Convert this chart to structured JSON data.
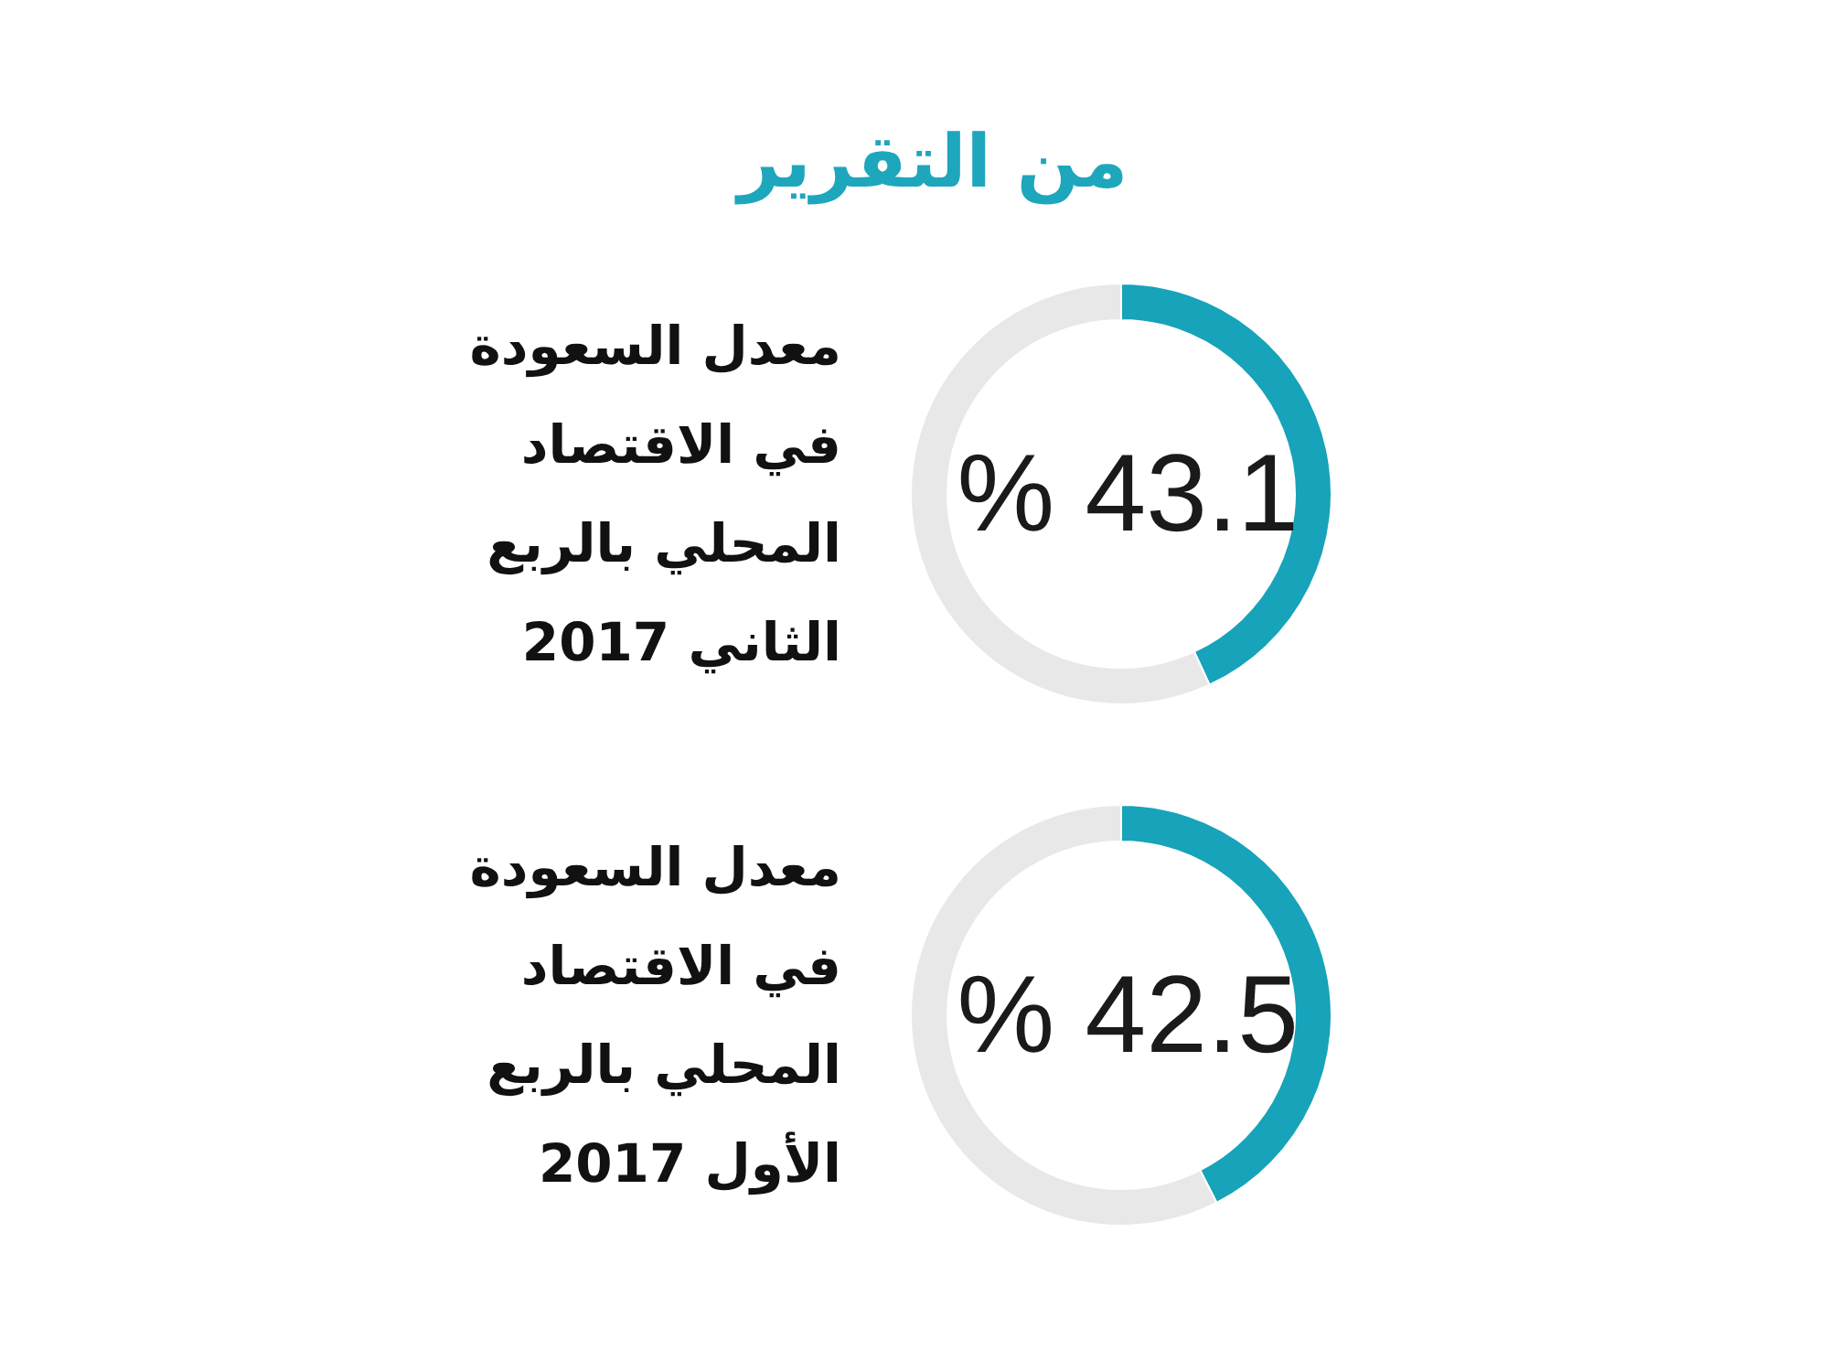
{
  "chart_data": [
    {
      "type": "other",
      "title": "من التقرير"
    },
    {
      "type": "donut",
      "title": "معدل السعودة في الاقتصاد المحلي بالربع الثاني 2017",
      "categories": [
        null,
        null
      ],
      "values": [
        43.1,
        56.9
      ],
      "colors": [
        "#17a3b9",
        "#e8e8e8"
      ],
      "value_labels": [
        "% 43.1",
        null
      ]
    },
    {
      "type": "donut",
      "title": "معدل السعودة في الاقتصاد المحلي بالربع الأول 2017",
      "categories": [
        null,
        null
      ],
      "values": [
        42.5,
        57.5
      ],
      "colors": [
        "#17a3b9",
        "#e8e8e8"
      ],
      "value_labels": [
        "% 42.5",
        null
      ]
    }
  ]
}
